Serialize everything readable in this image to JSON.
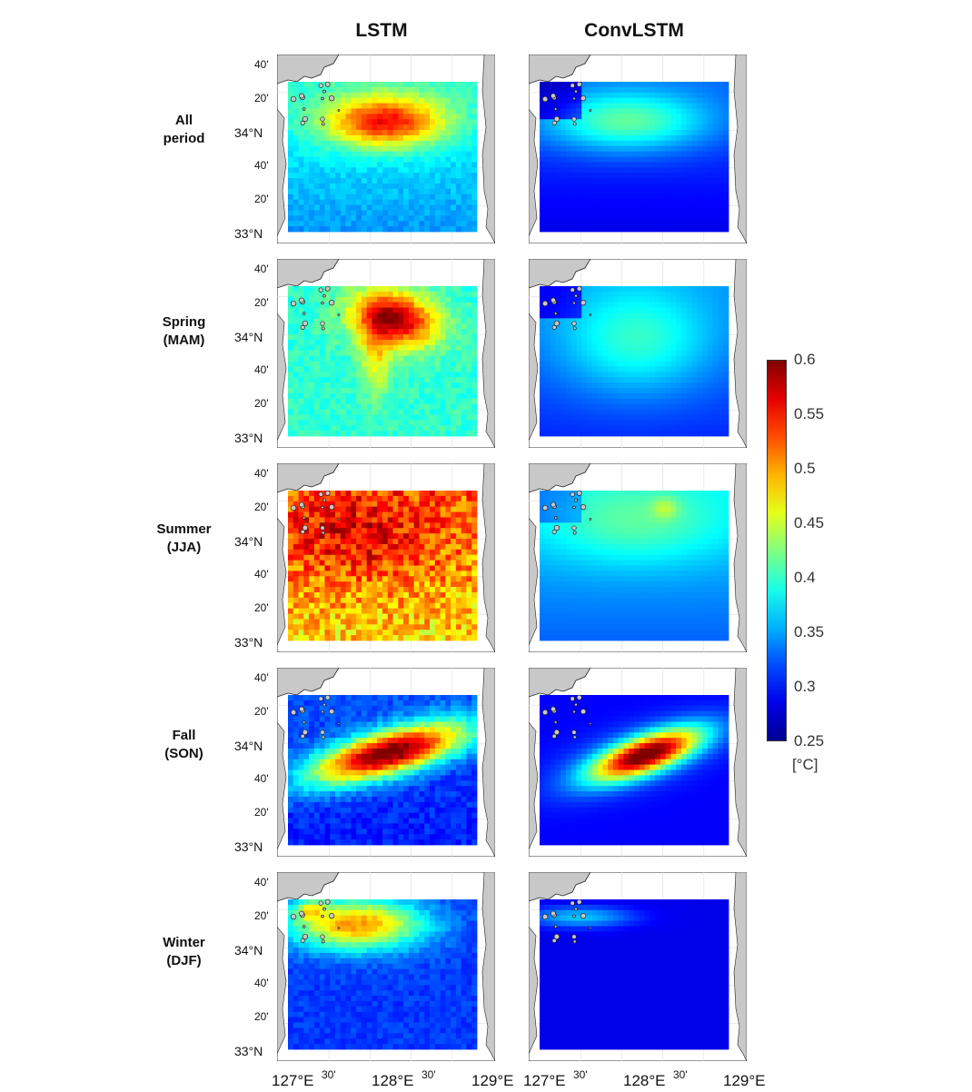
{
  "columns": [
    "LSTM",
    "ConvLSTM"
  ],
  "rows": [
    {
      "label_line1": "All",
      "label_line2": "period"
    },
    {
      "label_line1": "Spring",
      "label_line2": "(MAM)"
    },
    {
      "label_line1": "Summer",
      "label_line2": "(JJA)"
    },
    {
      "label_line1": "Fall",
      "label_line2": "(SON)"
    },
    {
      "label_line1": "Winter",
      "label_line2": "(DJF)"
    }
  ],
  "lat_ticks": [
    "40'",
    "20'",
    "34°N",
    "40'",
    "20'",
    "33°N"
  ],
  "lon_ticks": [
    {
      "text": "127°E",
      "minor": false
    },
    {
      "text": "30'",
      "minor": true
    },
    {
      "text": "128°E",
      "minor": false
    },
    {
      "text": "30'",
      "minor": true
    },
    {
      "text": "129°E",
      "minor": false
    }
  ],
  "colorbar": {
    "min": 0.25,
    "max": 0.6,
    "ticks": [
      "0.6",
      "0.55",
      "0.5",
      "0.45",
      "0.4",
      "0.35",
      "0.3",
      "0.25"
    ],
    "unit": "[°C]"
  },
  "colors": {
    "land": "#c8c8c8",
    "coast": "#222222",
    "frame": "#333333"
  }
}
